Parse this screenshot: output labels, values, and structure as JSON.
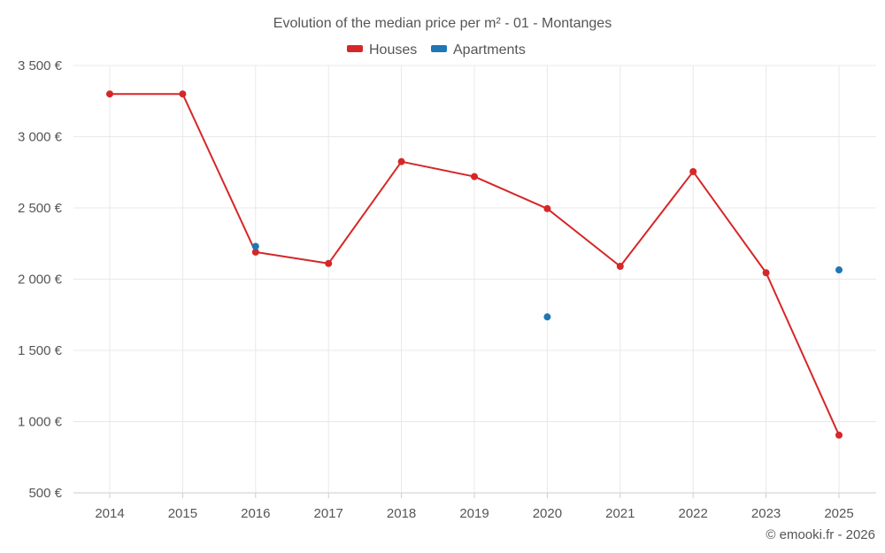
{
  "chart_data": {
    "type": "line",
    "title": "Evolution of the median price per m² - 01 - Montanges",
    "x": [
      "2014",
      "2015",
      "2016",
      "2017",
      "2018",
      "2019",
      "2020",
      "2021",
      "2022",
      "2023",
      "2025"
    ],
    "ylim": [
      500,
      3500
    ],
    "yticks": [
      500,
      1000,
      1500,
      2000,
      2500,
      3000,
      3500
    ],
    "ytick_labels": [
      "500 €",
      "1 000 €",
      "1 500 €",
      "2 000 €",
      "2 500 €",
      "3 000 €",
      "3 500 €"
    ],
    "grid": true,
    "legend": "top-center",
    "series": [
      {
        "name": "Houses",
        "color": "#d62728",
        "values": [
          3300,
          3300,
          2190,
          2110,
          2825,
          2720,
          2495,
          2090,
          2755,
          2045,
          905
        ]
      },
      {
        "name": "Apartments",
        "color": "#1f77b4",
        "values": [
          null,
          null,
          2230,
          null,
          null,
          null,
          1735,
          null,
          null,
          null,
          2065
        ]
      }
    ],
    "credit": "© emooki.fr - 2026"
  }
}
